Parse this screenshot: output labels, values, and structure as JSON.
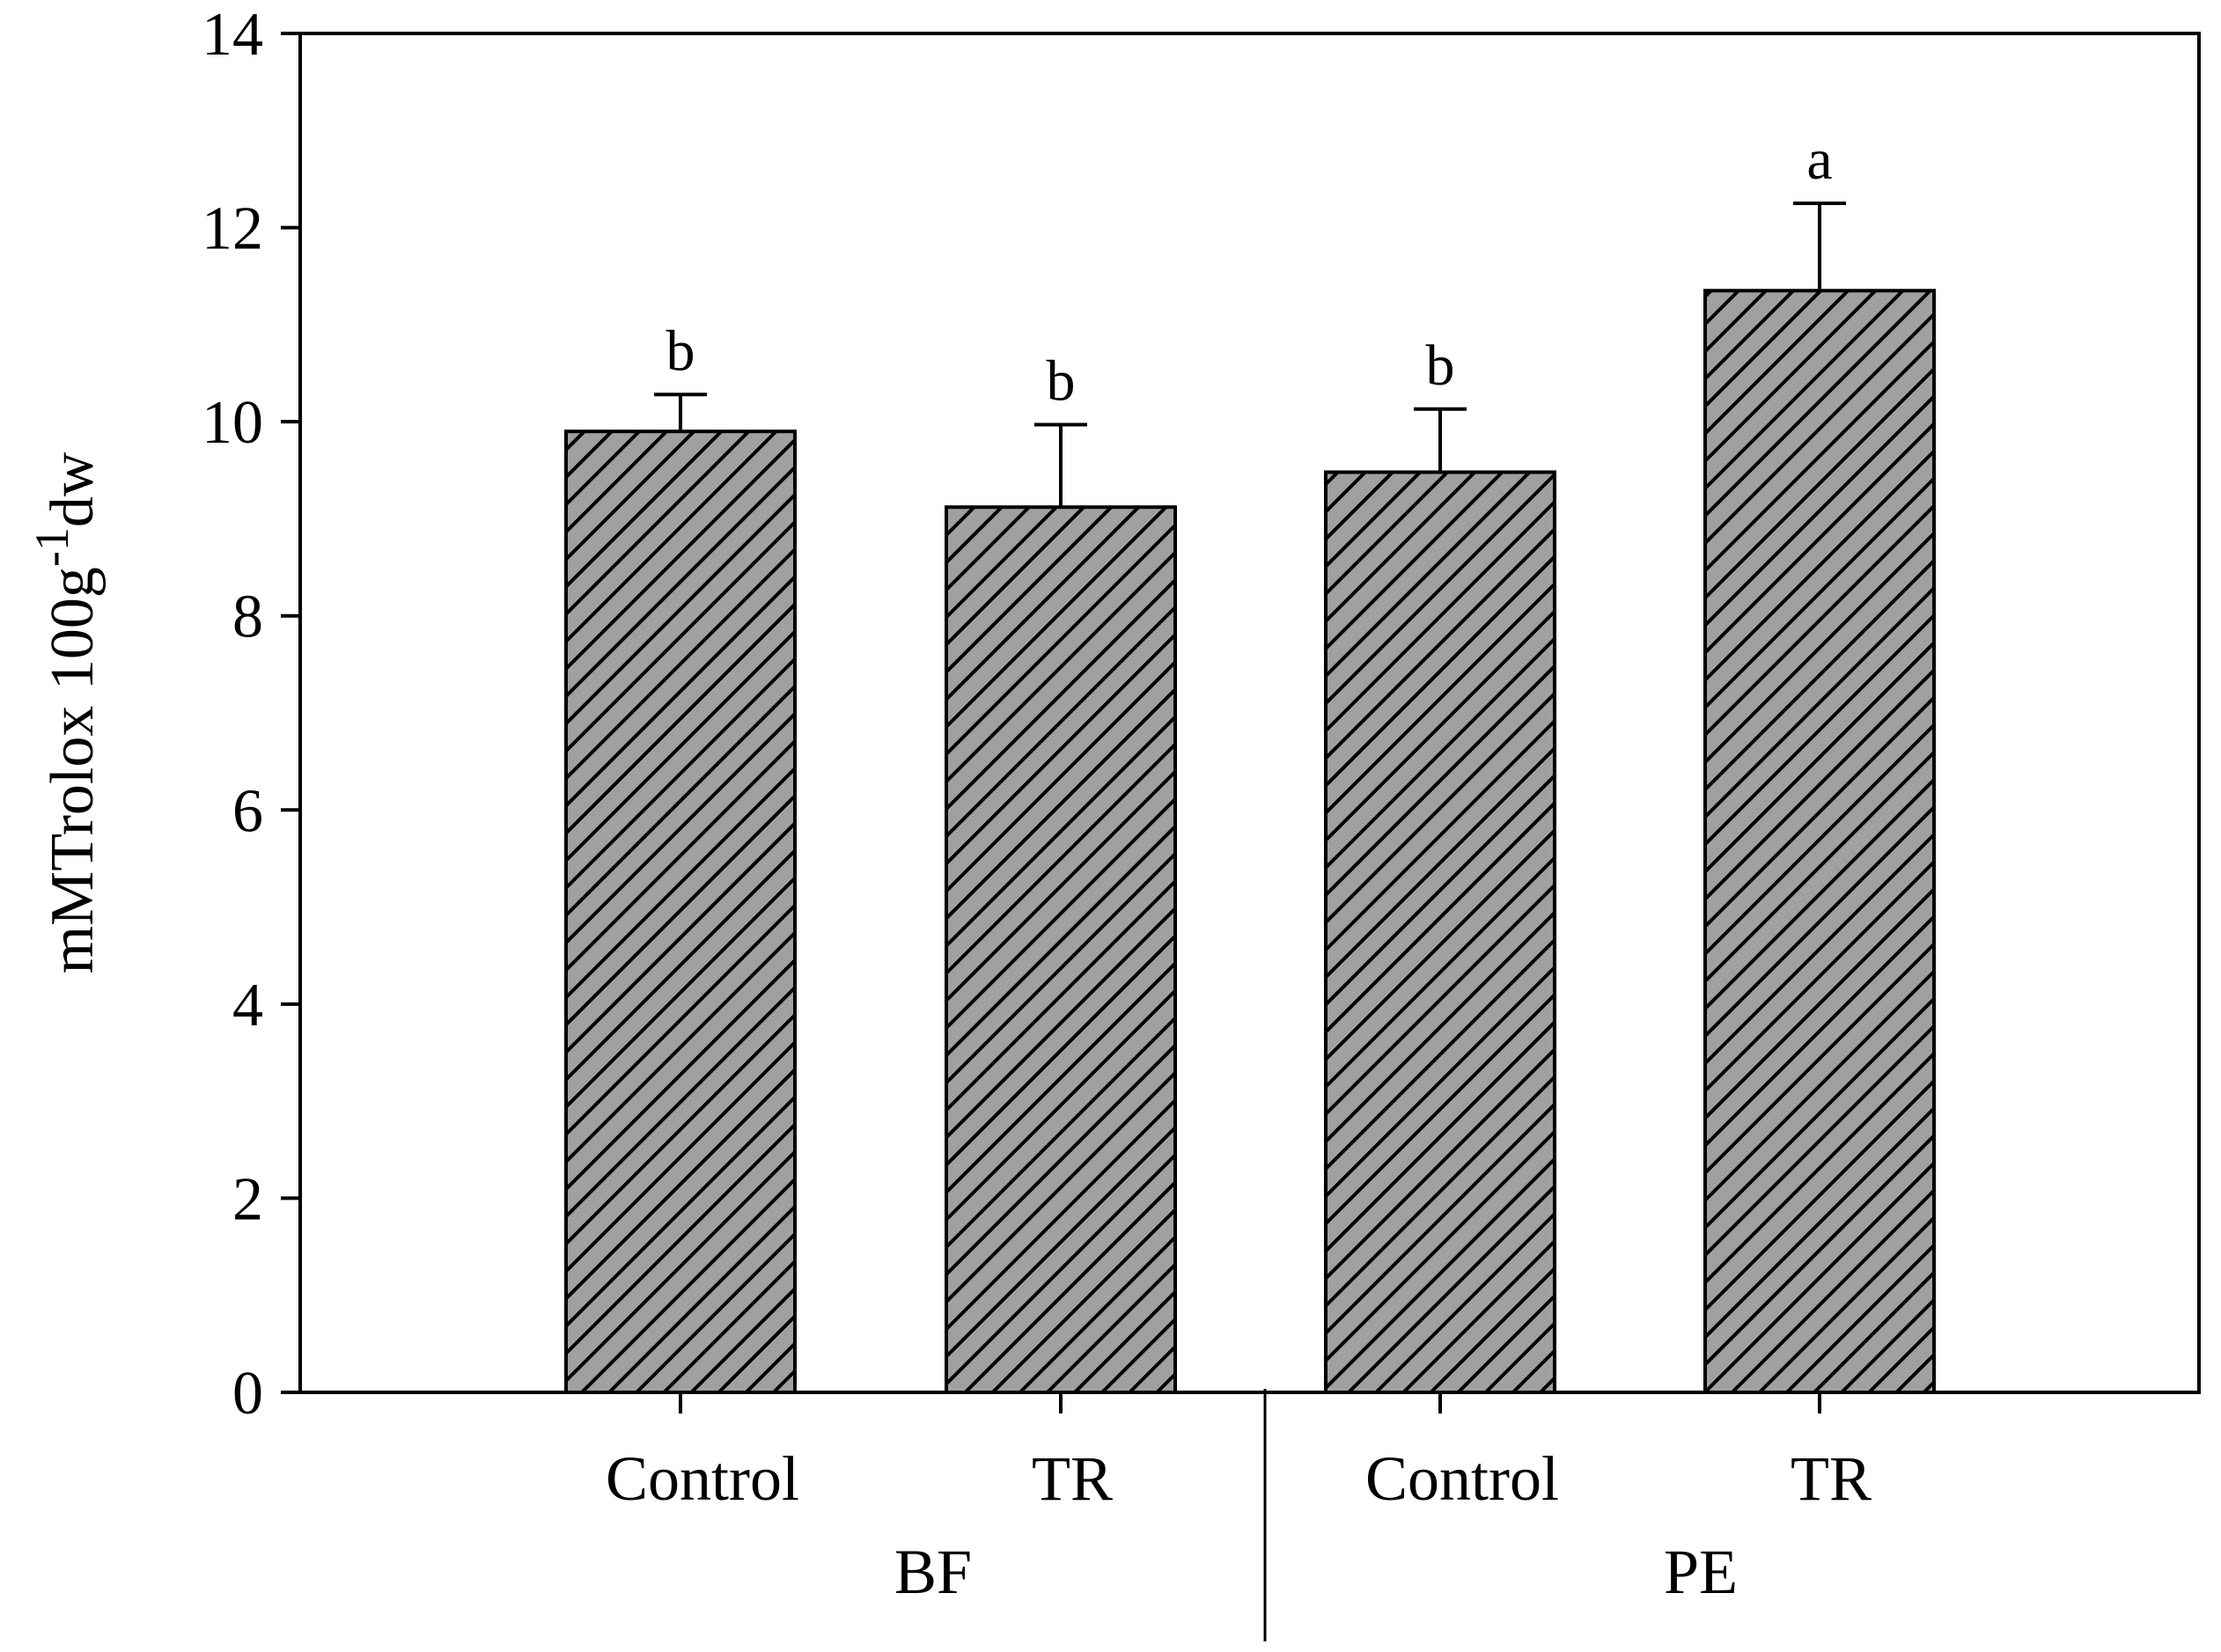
{
  "chart_data": {
    "type": "bar",
    "title": "",
    "xlabel": "",
    "ylabel": {
      "main": "mMTrolox 100g",
      "superscript": "-1",
      "suffix": "dw"
    },
    "ylim": [
      0,
      14
    ],
    "yticks": [
      0,
      2,
      4,
      6,
      8,
      10,
      12,
      14
    ],
    "yticks_text": [
      "0",
      "2",
      "4",
      "6",
      "8",
      "10",
      "12",
      "14"
    ],
    "grid": false,
    "categories": [
      "Control",
      "TR",
      "Control",
      "TR"
    ],
    "groups": [
      {
        "name": "BF",
        "members": [
          0,
          1
        ]
      },
      {
        "name": "PE",
        "members": [
          2,
          3
        ]
      }
    ],
    "values": [
      9.9,
      9.12,
      9.48,
      11.35
    ],
    "errors": [
      0.38,
      0.85,
      0.65,
      0.9
    ],
    "significance": [
      "b",
      "b",
      "b",
      "a"
    ],
    "fill": "#a0a0a0",
    "hatch_color": "#000000"
  }
}
